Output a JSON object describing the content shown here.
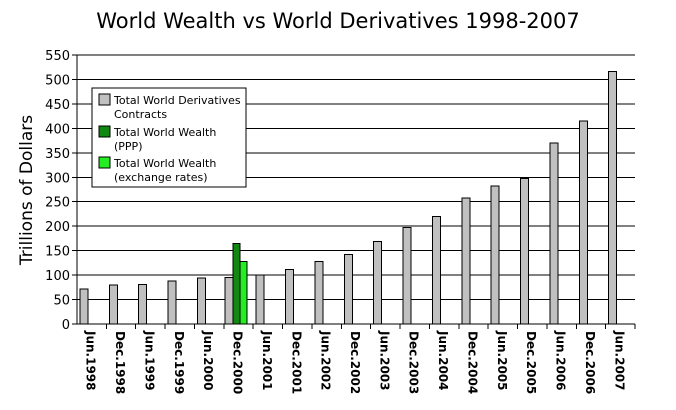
{
  "chart_data": {
    "type": "bar",
    "title": "World Wealth vs World Derivatives 1998-2007",
    "xlabel": "",
    "ylabel": "Trillions of Dollars",
    "ylim": [
      0,
      550
    ],
    "yticks": [
      0,
      50,
      100,
      150,
      200,
      250,
      300,
      350,
      400,
      450,
      500,
      550
    ],
    "grid": "horizontal",
    "legend_position": "top-left",
    "categories": [
      "Jun.1998",
      "Dec.1998",
      "Jun.1999",
      "Dec.1999",
      "Jun.2000",
      "Dec.2000",
      "Jun.2001",
      "Dec.2001",
      "Jun.2002",
      "Dec.2002",
      "Jun.2003",
      "Dec.2003",
      "Jun.2004",
      "Dec.2004",
      "Jun.2005",
      "Dec.2005",
      "Jun.2006",
      "Dec.2006",
      "Jun.2007"
    ],
    "series": [
      {
        "name": "Total World Derivatives Contracts",
        "color": "#c0c0c0",
        "values": [
          72,
          80,
          81,
          88,
          94,
          95,
          100,
          111,
          128,
          142,
          169,
          197,
          220,
          258,
          282,
          298,
          370,
          415,
          516
        ]
      },
      {
        "name": "Total World Wealth (PPP)",
        "color": "#118811",
        "values": [
          null,
          null,
          null,
          null,
          null,
          165,
          null,
          null,
          null,
          null,
          null,
          null,
          null,
          null,
          null,
          null,
          null,
          null,
          null
        ]
      },
      {
        "name": "Total World Wealth (exchange rates)",
        "color": "#22ee22",
        "values": [
          null,
          null,
          null,
          null,
          null,
          128,
          null,
          null,
          null,
          null,
          null,
          null,
          null,
          null,
          null,
          null,
          null,
          null,
          null
        ]
      }
    ],
    "legend_lines": [
      [
        "Total World Derivatives",
        "Contracts"
      ],
      [
        "Total World Wealth",
        "(PPP)"
      ],
      [
        "Total World Wealth",
        "(exchange rates)"
      ]
    ]
  }
}
